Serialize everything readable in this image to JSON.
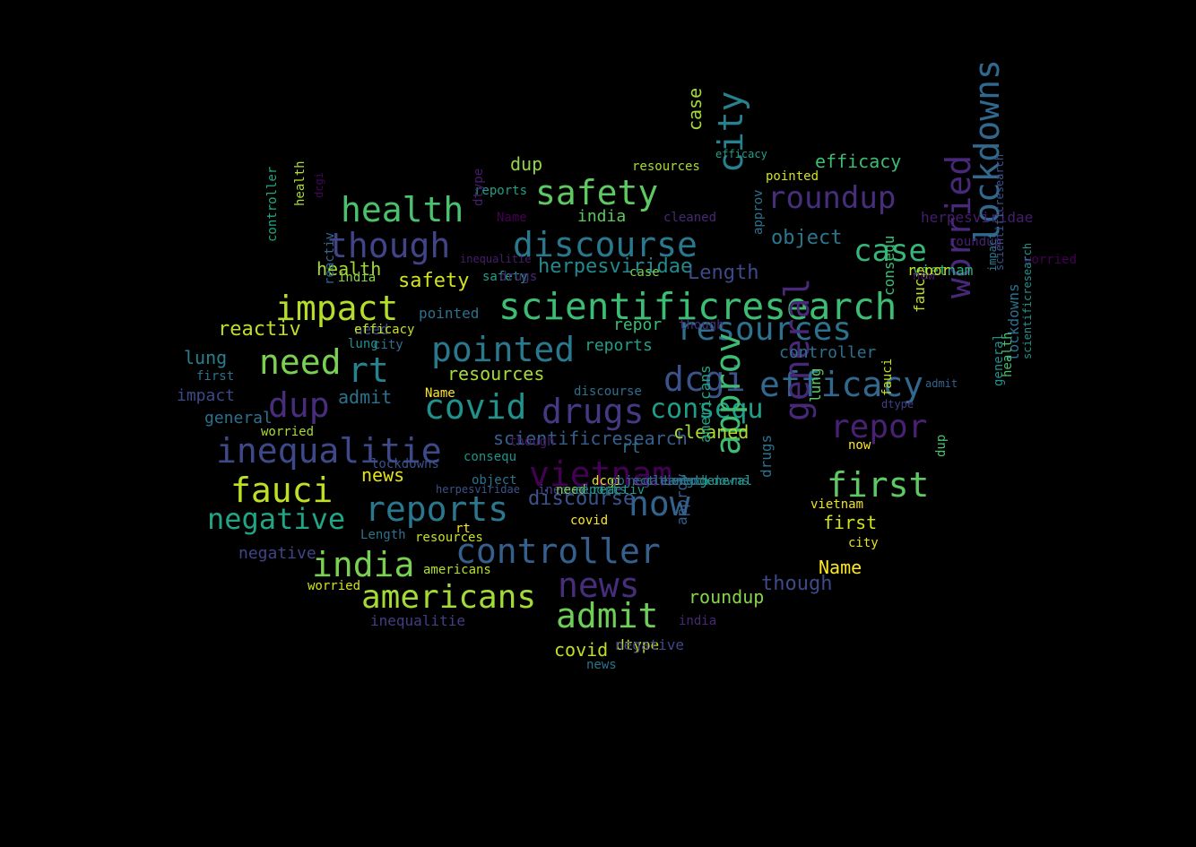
{
  "palette": {
    "background": "#000000"
  },
  "words": [
    {
      "text": "scientificresearch",
      "color": "#3dbc74"
    },
    {
      "text": "discourse",
      "color": "#2a788e"
    },
    {
      "text": "safety",
      "color": "#5ec962"
    },
    {
      "text": "health",
      "color": "#4ac16d"
    },
    {
      "text": "though",
      "color": "#414487"
    },
    {
      "text": "roundup",
      "color": "#472d7b"
    },
    {
      "text": "case",
      "color": "#35b779"
    },
    {
      "text": "city",
      "color": "#26828e"
    },
    {
      "text": "impact",
      "color": "#b5de2b"
    },
    {
      "text": "resources",
      "color": "#2c728e"
    },
    {
      "text": "pointed",
      "color": "#2a788e"
    },
    {
      "text": "need",
      "color": "#7ad151"
    },
    {
      "text": "rt",
      "color": "#26828e"
    },
    {
      "text": "dcgi",
      "color": "#3b528b"
    },
    {
      "text": "efficacy",
      "color": "#31688e"
    },
    {
      "text": "worried",
      "color": "#482878"
    },
    {
      "text": "lockdowns",
      "color": "#31688e"
    },
    {
      "text": "covid",
      "color": "#21918c"
    },
    {
      "text": "drugs",
      "color": "#443983"
    },
    {
      "text": "dup",
      "color": "#472d7b"
    },
    {
      "text": "consequ",
      "color": "#1f9e89"
    },
    {
      "text": "repor",
      "color": "#482173"
    },
    {
      "text": "inequalitie",
      "color": "#3e4989"
    },
    {
      "text": "vietnam",
      "color": "#440154"
    },
    {
      "text": "general",
      "color": "#482878"
    },
    {
      "text": "first",
      "color": "#5ec962"
    },
    {
      "text": "fauci",
      "color": "#bddf26"
    },
    {
      "text": "now",
      "color": "#33638d"
    },
    {
      "text": "approv",
      "color": "#3dbc74"
    },
    {
      "text": "negative",
      "color": "#21a585"
    },
    {
      "text": "reports",
      "color": "#2a788e"
    },
    {
      "text": "india",
      "color": "#7ad151"
    },
    {
      "text": "controller",
      "color": "#355f8d"
    },
    {
      "text": "americans",
      "color": "#a2da37"
    },
    {
      "text": "news",
      "color": "#472d7b"
    },
    {
      "text": "admit",
      "color": "#6ece58"
    },
    {
      "text": "efficacy",
      "color": "#3dbc74"
    },
    {
      "text": "case",
      "color": "#a2da37"
    },
    {
      "text": "object",
      "color": "#2a788e"
    },
    {
      "text": "Length",
      "color": "#3e4989"
    },
    {
      "text": "herpesviridae",
      "color": "#23898e"
    },
    {
      "text": "health",
      "color": "#a2da37"
    },
    {
      "text": "safety",
      "color": "#d2e21b"
    },
    {
      "text": "reactiv",
      "color": "#bddf26"
    },
    {
      "text": "lung",
      "color": "#277f8e"
    },
    {
      "text": "impact",
      "color": "#3e4989"
    },
    {
      "text": "general",
      "color": "#2d708e"
    },
    {
      "text": "admit",
      "color": "#2c728e"
    },
    {
      "text": "reports",
      "color": "#1fa088"
    },
    {
      "text": "resources",
      "color": "#a8db34"
    },
    {
      "text": "scientificresearch",
      "color": "#355f8d"
    },
    {
      "text": "cleaned",
      "color": "#addc30"
    },
    {
      "text": "news",
      "color": "#e5e419"
    },
    {
      "text": "discourse",
      "color": "#3b528b"
    },
    {
      "text": "dtype",
      "color": "#d2e21b"
    },
    {
      "text": "negative",
      "color": "#414487"
    },
    {
      "text": "though",
      "color": "#3e4989"
    },
    {
      "text": "Name",
      "color": "#fde725"
    },
    {
      "text": "first",
      "color": "#d2e21b"
    },
    {
      "text": "roundup",
      "color": "#86d549"
    },
    {
      "text": "dup",
      "color": "#8fd744"
    },
    {
      "text": "covid",
      "color": "#c2df23"
    },
    {
      "text": "negative",
      "color": "#3e4989"
    },
    {
      "text": "inequalitie",
      "color": "#433e85"
    },
    {
      "text": "pointed",
      "color": "#2c728e"
    },
    {
      "text": "need",
      "color": "#3b528b"
    },
    {
      "text": "controller",
      "color": "#2c728e"
    },
    {
      "text": "rt",
      "color": "#2c728e"
    },
    {
      "text": "repor",
      "color": "#3dbc74"
    },
    {
      "text": "india",
      "color": "#5ec962"
    },
    {
      "text": "consequ",
      "color": "#3dbc74"
    },
    {
      "text": "fauci",
      "color": "#bddf26"
    },
    {
      "text": "americans",
      "color": "#21a585"
    },
    {
      "text": "vietnam",
      "color": "#2fb47c"
    },
    {
      "text": "drugs",
      "color": "#2c728e"
    },
    {
      "text": "approv",
      "color": "#355f8d"
    },
    {
      "text": "worried",
      "color": "#440154"
    },
    {
      "text": "lockdowns",
      "color": "#2c728e"
    },
    {
      "text": "resources",
      "color": "#a8db34"
    },
    {
      "text": "efficacy",
      "color": "#1fa088"
    },
    {
      "text": "pointed",
      "color": "#d2e21b"
    },
    {
      "text": "though",
      "color": "#472d7b"
    },
    {
      "text": "cleaned",
      "color": "#482878"
    },
    {
      "text": "herpesviridae",
      "color": "#481c6e"
    },
    {
      "text": "roundup",
      "color": "#482173"
    },
    {
      "text": "repor",
      "color": "#c8e020"
    },
    {
      "text": "now",
      "color": "#471063"
    },
    {
      "text": "case",
      "color": "#7ad151"
    },
    {
      "text": "approv",
      "color": "#2c728e"
    },
    {
      "text": "Name",
      "color": "#440154"
    },
    {
      "text": "reports",
      "color": "#1fa088"
    },
    {
      "text": "health",
      "color": "#addc30"
    },
    {
      "text": "dcgi",
      "color": "#450559"
    },
    {
      "text": "controller",
      "color": "#22a785"
    },
    {
      "text": "india",
      "color": "#86d549"
    },
    {
      "text": "reactiv",
      "color": "#31688e"
    },
    {
      "text": "inequalitie",
      "color": "#481c6e"
    },
    {
      "text": "dtype",
      "color": "#481c6e"
    },
    {
      "text": "city",
      "color": "#2d708e"
    },
    {
      "text": "safety",
      "color": "#1fa088"
    },
    {
      "text": "first",
      "color": "#2c728e"
    },
    {
      "text": "lung",
      "color": "#20928c"
    },
    {
      "text": "drugs",
      "color": "#482878"
    },
    {
      "text": "americans",
      "color": "#b5de2b"
    },
    {
      "text": "fauci",
      "color": "#c8e020"
    },
    {
      "text": "general",
      "color": "#21918c"
    },
    {
      "text": "admit",
      "color": "#33638d"
    },
    {
      "text": "impact",
      "color": "#2a788e"
    },
    {
      "text": "scientificresearch",
      "color": "#21918c"
    },
    {
      "text": "dtype",
      "color": "#433e85"
    },
    {
      "text": "worried",
      "color": "#a8db34"
    },
    {
      "text": "lockdowns",
      "color": "#3b528b"
    },
    {
      "text": "consequ",
      "color": "#21918c"
    },
    {
      "text": "object",
      "color": "#2c728e"
    },
    {
      "text": "herpesviridae",
      "color": "#3b528b"
    },
    {
      "text": "Length",
      "color": "#2c728e"
    },
    {
      "text": "resources",
      "color": "#c8e020"
    },
    {
      "text": "rt",
      "color": "#fde725"
    },
    {
      "text": "covid",
      "color": "#fde725"
    },
    {
      "text": "lung",
      "color": "#5ec962"
    },
    {
      "text": "vietnam",
      "color": "#efe51c"
    },
    {
      "text": "city",
      "color": "#e5e419"
    },
    {
      "text": "Name",
      "color": "#fde725"
    },
    {
      "text": "india",
      "color": "#482878"
    },
    {
      "text": "news",
      "color": "#2c728e"
    },
    {
      "text": "discourse",
      "color": "#2d708e"
    },
    {
      "text": "dup",
      "color": "#4ac16d"
    },
    {
      "text": "health",
      "color": "#48c16e"
    },
    {
      "text": "worried",
      "color": "#d2e21b"
    },
    {
      "text": "now",
      "color": "#fde725"
    },
    {
      "text": "efficacy",
      "color": "#c8e020"
    },
    {
      "text": "scientificresearch",
      "color": "#3b528b"
    },
    {
      "text": "though",
      "color": "#481c6e"
    },
    {
      "text": "dcgi",
      "color": "#e5e419"
    },
    {
      "text": "object",
      "color": "#2c728e"
    },
    {
      "text": "negative",
      "color": "#3b528b"
    },
    {
      "text": "cleaned",
      "color": "#2c728e"
    },
    {
      "text": "Length",
      "color": "#277f8e"
    },
    {
      "text": "lockdowns",
      "color": "#2a788e"
    },
    {
      "text": "general",
      "color": "#1f9e89"
    },
    {
      "text": "inequalitie",
      "color": "#433e85"
    },
    {
      "text": "need",
      "color": "#7ad151"
    },
    {
      "text": "reports",
      "color": "#238a8d"
    },
    {
      "text": "reactiv",
      "color": "#1fa088"
    }
  ]
}
